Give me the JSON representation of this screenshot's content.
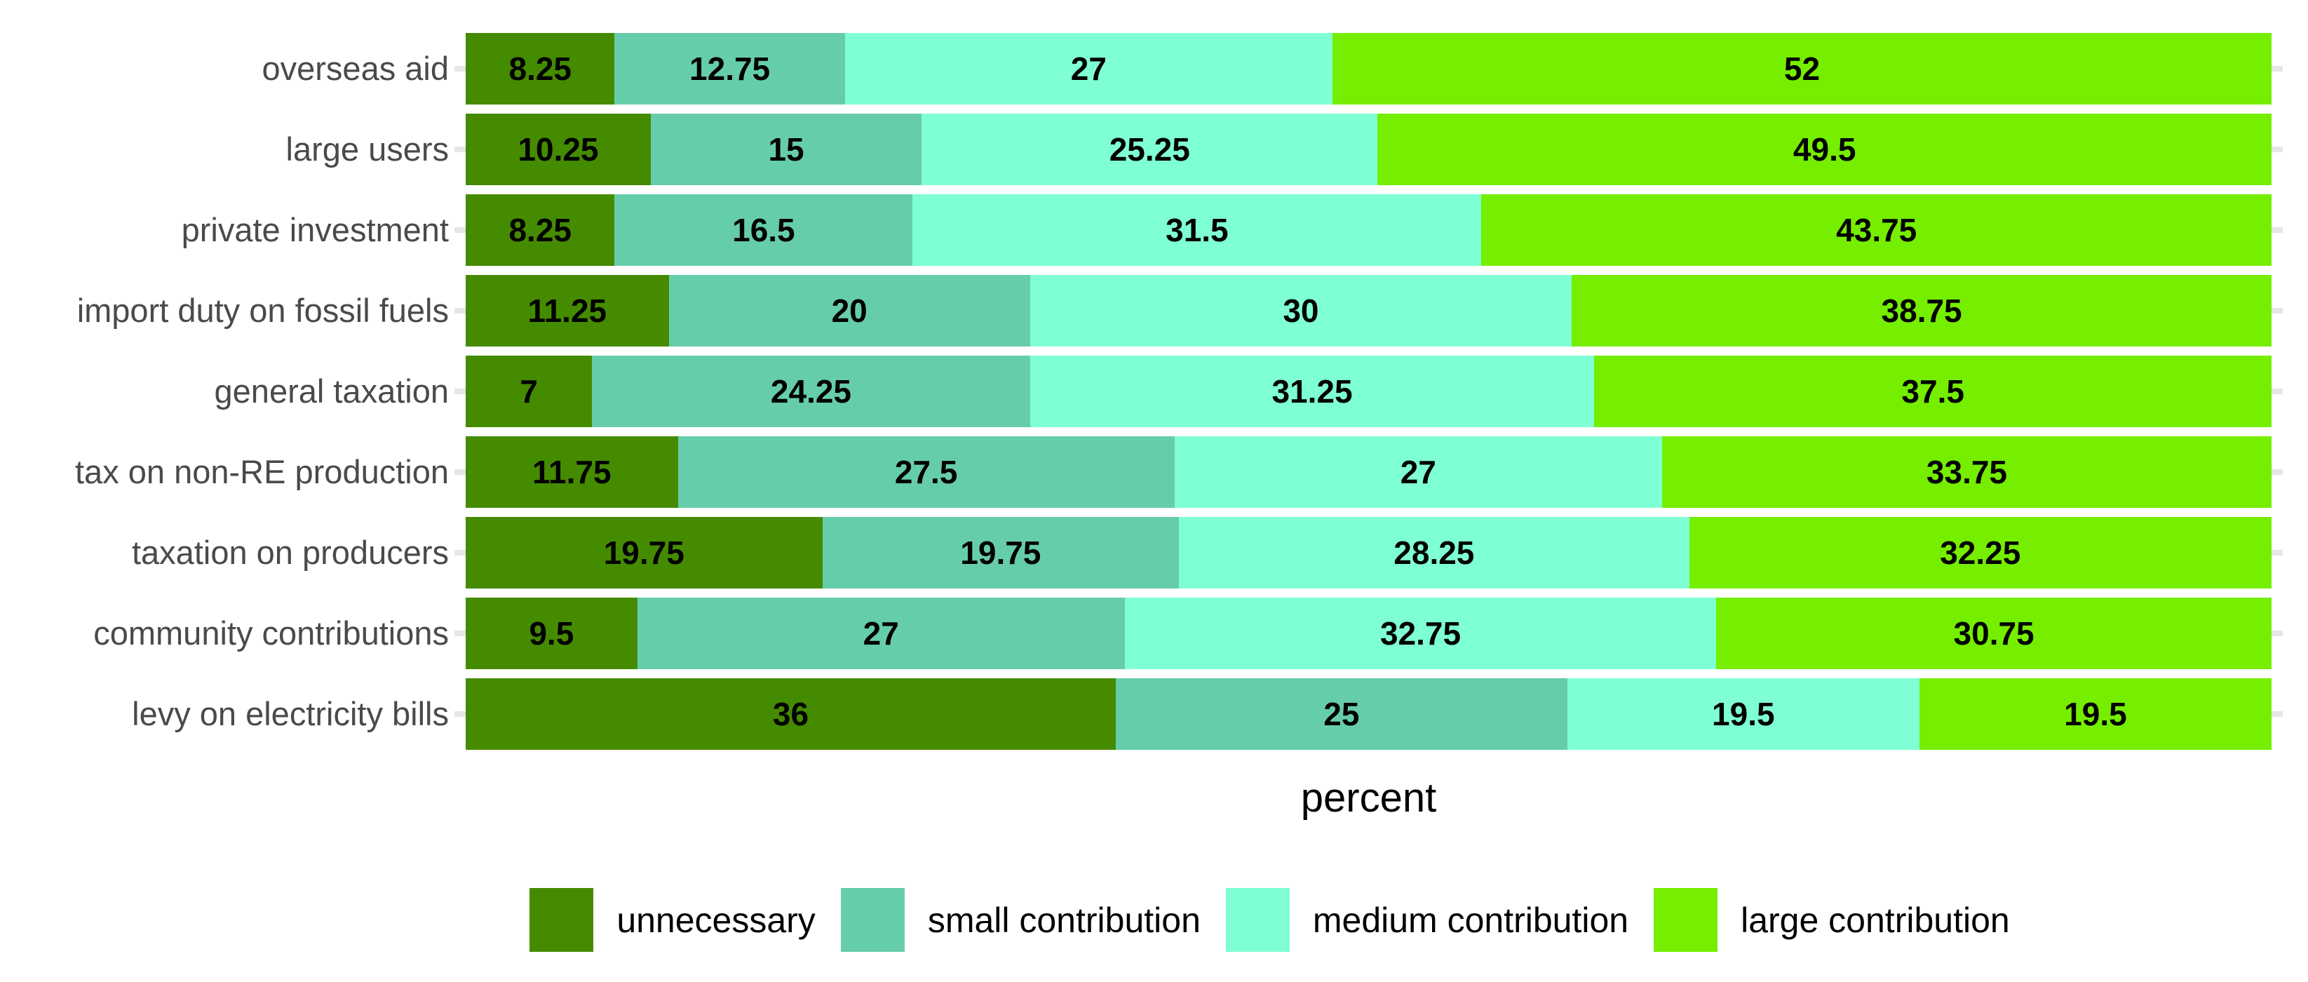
{
  "chart_data": {
    "type": "bar",
    "orientation": "horizontal",
    "stacked": true,
    "title": "",
    "xlabel": "percent",
    "ylabel": "",
    "xlim": [
      0,
      100
    ],
    "grid": false,
    "value_labels": true,
    "legend_position": "bottom",
    "categories": [
      "overseas aid",
      "large users",
      "private investment",
      "import duty on fossil fuels",
      "general taxation",
      "tax on non-RE production",
      "taxation on producers",
      "community contributions",
      "levy on electricity bills"
    ],
    "series": [
      {
        "name": "unnecessary",
        "color": "#458B00",
        "values": [
          8.25,
          10.25,
          8.25,
          11.25,
          7,
          11.75,
          19.75,
          9.5,
          36
        ]
      },
      {
        "name": "small contribution",
        "color": "#66CDAA",
        "values": [
          12.75,
          15,
          16.5,
          20,
          24.25,
          27.5,
          19.75,
          27,
          25
        ]
      },
      {
        "name": "medium contribution",
        "color": "#7FFFD4",
        "values": [
          27,
          25.25,
          31.5,
          30,
          31.25,
          27,
          28.25,
          32.75,
          19.5
        ]
      },
      {
        "name": "large contribution",
        "color": "#76EE00",
        "values": [
          52,
          49.5,
          43.75,
          38.75,
          37.5,
          33.75,
          32.25,
          30.75,
          19.5
        ]
      }
    ]
  },
  "style": {
    "axis_label_color": "#4a4a4a",
    "tick_color": "#e6e6e6",
    "value_label_color": "#000000",
    "background": "#ffffff"
  }
}
